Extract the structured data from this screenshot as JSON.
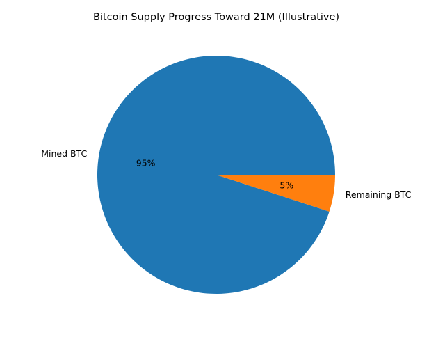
{
  "chart_data": {
    "type": "pie",
    "title": "Bitcoin Supply Progress Toward 21M (Illustrative)",
    "labels": [
      "Mined BTC",
      "Remaining BTC"
    ],
    "values": [
      95,
      5
    ],
    "pct_labels": [
      "95%",
      "5%"
    ],
    "colors": [
      "#1f77b4",
      "#ff7f0e"
    ],
    "start_angle_deg": 0,
    "direction": "counterclockwise",
    "legend": "none"
  }
}
